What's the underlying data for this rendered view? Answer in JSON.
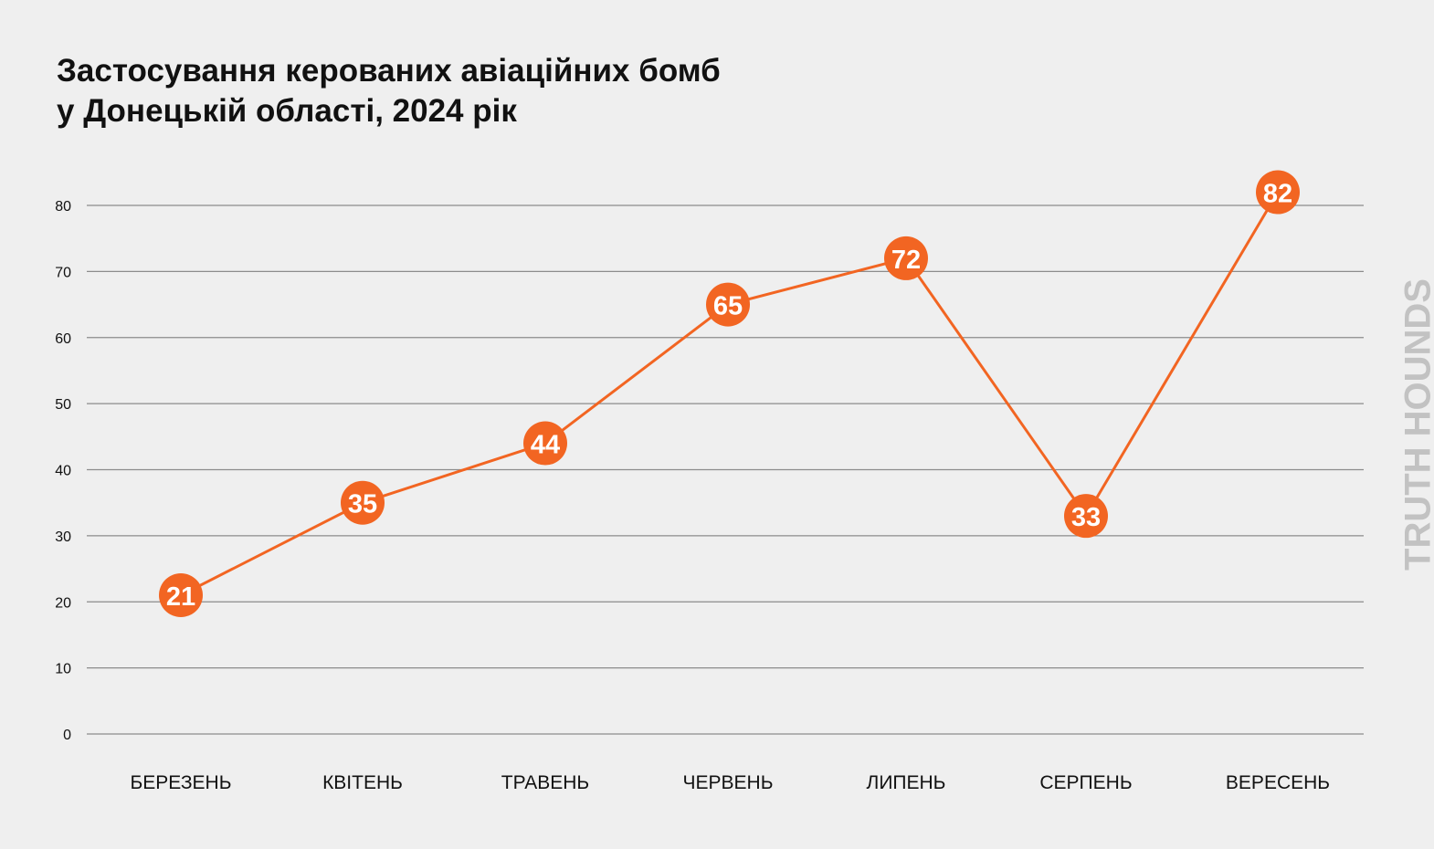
{
  "title_line1": "Застосування керованих авіаційних бомб",
  "title_line2": "у Донецькій області, 2024 рік",
  "watermark": "TRUTH HOUNDS",
  "colors": {
    "line": "#f26522",
    "marker": "#f26522",
    "marker_text": "#ffffff",
    "grid": "#8c8c8c",
    "text": "#111111"
  },
  "chart_data": {
    "type": "line",
    "categories": [
      "БЕРЕЗЕНЬ",
      "КВІТЕНЬ",
      "ТРАВЕНЬ",
      "ЧЕРВЕНЬ",
      "ЛИПЕНЬ",
      "СЕРПЕНЬ",
      "ВЕРЕСЕНЬ"
    ],
    "values": [
      21,
      35,
      44,
      65,
      72,
      33,
      82
    ],
    "yticks": [
      0,
      10,
      20,
      30,
      40,
      50,
      60,
      70,
      80
    ],
    "ylim": [
      0,
      80
    ],
    "grid": true,
    "legend": false
  }
}
